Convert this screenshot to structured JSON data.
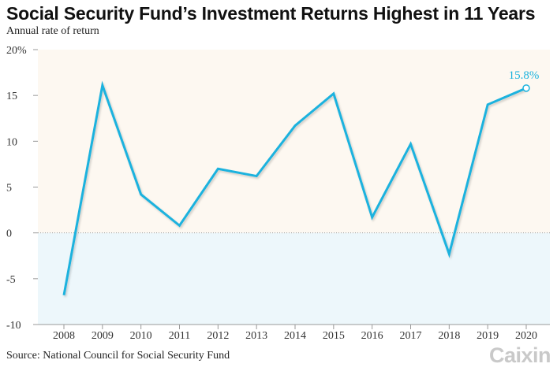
{
  "header": {
    "title": "Social Security Fund’s Investment Returns Highest in 11 Years",
    "subtitle": "Annual rate of return"
  },
  "footer": {
    "source": "Source: National Council for Social Security Fund",
    "brand": "Caixin"
  },
  "colors": {
    "line": "#1ab2de",
    "positive_band": "#fdf8f1",
    "negative_band": "#edf7fb",
    "axis": "#999999",
    "brand": "#c9c9c9"
  },
  "chart_data": {
    "type": "line",
    "title": "Social Security Fund’s Investment Returns Highest in 11 Years",
    "subtitle": "Annual rate of return",
    "categories": [
      "2008",
      "2009",
      "2010",
      "2011",
      "2012",
      "2013",
      "2014",
      "2015",
      "2016",
      "2017",
      "2018",
      "2019",
      "2020"
    ],
    "series": [
      {
        "values": [
          -6.8,
          16.1,
          4.2,
          0.8,
          7.0,
          6.2,
          11.7,
          15.2,
          1.7,
          9.7,
          -2.3,
          14.0,
          15.8
        ]
      }
    ],
    "y_ticks": [
      20,
      15,
      10,
      5,
      0,
      -5,
      -10
    ],
    "y_tick_labels": [
      "20%",
      "15",
      "10",
      "5",
      "0",
      "-5",
      "-10"
    ],
    "ylim": [
      -10,
      20
    ],
    "annotation": {
      "category": "2020",
      "text": "15.8%"
    },
    "grid": false,
    "legend": "none"
  }
}
